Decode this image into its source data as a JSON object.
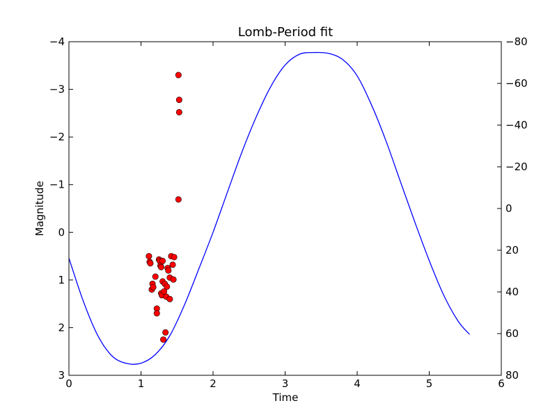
{
  "chart_data": {
    "type": "scatter",
    "title": "Lomb-Period fit",
    "xlabel": "Time",
    "ylabel": "Magnitude",
    "xlim": [
      0,
      6
    ],
    "ylim": [
      3,
      -4
    ],
    "ylim_right": [
      80,
      -80
    ],
    "y_inverted": true,
    "grid": false,
    "x_ticks": [
      "0",
      "1",
      "2",
      "3",
      "4",
      "5",
      "6"
    ],
    "y_ticks": [
      "−4",
      "−3",
      "−2",
      "−1",
      "0",
      "1",
      "2",
      "3"
    ],
    "y_ticks_right": [
      "−80",
      "−60",
      "−40",
      "−20",
      "0",
      "20",
      "40",
      "60",
      "80"
    ],
    "series": [
      {
        "kind": "points",
        "color": "#ff0000",
        "x": [
          1.52,
          1.53,
          1.53,
          1.52,
          1.11,
          1.12,
          1.13,
          1.15,
          1.16,
          1.17,
          1.2,
          1.22,
          1.22,
          1.25,
          1.26,
          1.27,
          1.28,
          1.28,
          1.29,
          1.3,
          1.3,
          1.31,
          1.32,
          1.33,
          1.34,
          1.35,
          1.36,
          1.37,
          1.38,
          1.4,
          1.4,
          1.42,
          1.44,
          1.45,
          1.46
        ],
        "y": [
          -3.3,
          -2.78,
          -2.52,
          -0.69,
          0.5,
          0.62,
          0.65,
          1.2,
          1.08,
          1.15,
          0.93,
          1.6,
          1.7,
          0.57,
          0.6,
          0.7,
          0.73,
          1.28,
          1.32,
          0.6,
          1.03,
          2.25,
          1.24,
          1.08,
          2.1,
          1.35,
          1.14,
          0.75,
          0.8,
          0.95,
          1.4,
          0.5,
          0.68,
          0.99,
          0.52
        ]
      },
      {
        "kind": "curve",
        "color": "#0000ff",
        "axis": "right",
        "x": [
          0,
          0.2,
          0.4,
          0.6,
          0.8,
          1.0,
          1.2,
          1.4,
          1.6,
          1.8,
          2.0,
          2.2,
          2.4,
          2.6,
          2.8,
          3.0,
          3.2,
          3.4,
          3.6,
          3.8,
          4.0,
          4.2,
          4.4,
          4.6,
          4.8,
          5.0,
          5.2,
          5.4,
          5.56
        ],
        "y": [
          23.8,
          44.5,
          60.9,
          70.8,
          74.3,
          74.2,
          70.0,
          61.0,
          46.5,
          29.2,
          11.4,
          -7.9,
          -27.0,
          -44.0,
          -58.4,
          -68.8,
          -74.0,
          -74.8,
          -74.4,
          -71.4,
          -63.6,
          -49.6,
          -32.4,
          -12.9,
          6.5,
          25.0,
          41.5,
          54.0,
          60.4
        ]
      }
    ]
  }
}
